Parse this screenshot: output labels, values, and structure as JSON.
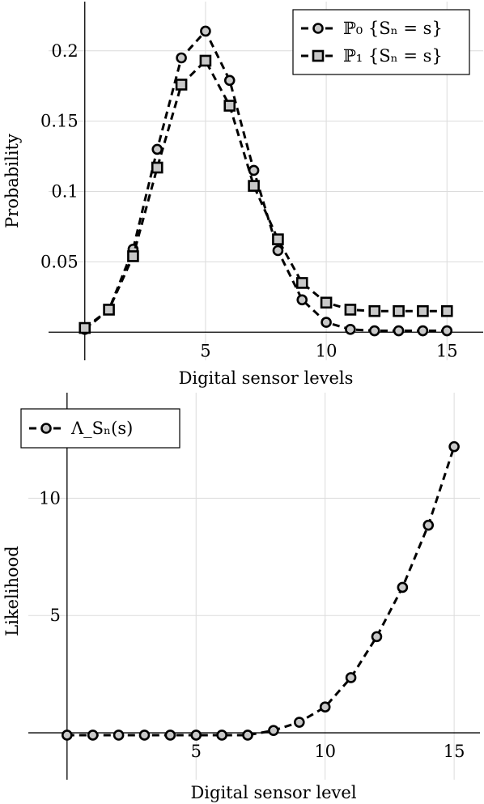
{
  "chart_data": [
    {
      "type": "line",
      "xlabel": "Digital sensor levels",
      "ylabel": "Probability",
      "xlim": [
        -1.5,
        16.5
      ],
      "ylim": [
        -0.02,
        0.235
      ],
      "xticks": [
        5,
        10,
        15
      ],
      "yticks": [
        0.05,
        0.1,
        0.15,
        0.2
      ],
      "ytick_labels": [
        "0.05",
        "0.1",
        "0.15",
        "0.2"
      ],
      "grid": true,
      "legend_position": "top-right",
      "x": [
        0,
        1,
        2,
        3,
        4,
        5,
        6,
        7,
        8,
        9,
        10,
        11,
        12,
        13,
        14,
        15
      ],
      "series": [
        {
          "name": "ℙ₀ {Sₙ = s}",
          "marker": "circle",
          "values": [
            0.002,
            0.016,
            0.059,
            0.13,
            0.195,
            0.214,
            0.179,
            0.115,
            0.058,
            0.023,
            0.007,
            0.002,
            0.001,
            0.001,
            0.001,
            0.001
          ]
        },
        {
          "name": "ℙ₁ {Sₙ = s}",
          "marker": "square",
          "values": [
            0.003,
            0.016,
            0.054,
            0.117,
            0.176,
            0.193,
            0.161,
            0.104,
            0.066,
            0.035,
            0.021,
            0.016,
            0.015,
            0.015,
            0.015,
            0.015
          ]
        }
      ]
    },
    {
      "type": "line",
      "xlabel": "Digital sensor level",
      "ylabel": "Likelihood",
      "xlim": [
        -1.5,
        16
      ],
      "ylim": [
        -2,
        14.5
      ],
      "xticks": [
        5,
        10,
        15
      ],
      "yticks": [
        5,
        10
      ],
      "ytick_labels": [
        "5",
        "10"
      ],
      "grid": true,
      "legend_position": "top-left",
      "x": [
        0,
        1,
        2,
        3,
        4,
        5,
        6,
        7,
        8,
        9,
        10,
        11,
        12,
        13,
        14,
        15
      ],
      "series": [
        {
          "name": "Λ_Sₙ(s)",
          "marker": "circle",
          "values": [
            -0.1,
            -0.1,
            -0.1,
            -0.1,
            -0.1,
            -0.1,
            -0.1,
            -0.1,
            0.1,
            0.45,
            1.1,
            2.35,
            4.1,
            6.2,
            8.85,
            12.2
          ]
        }
      ]
    }
  ]
}
